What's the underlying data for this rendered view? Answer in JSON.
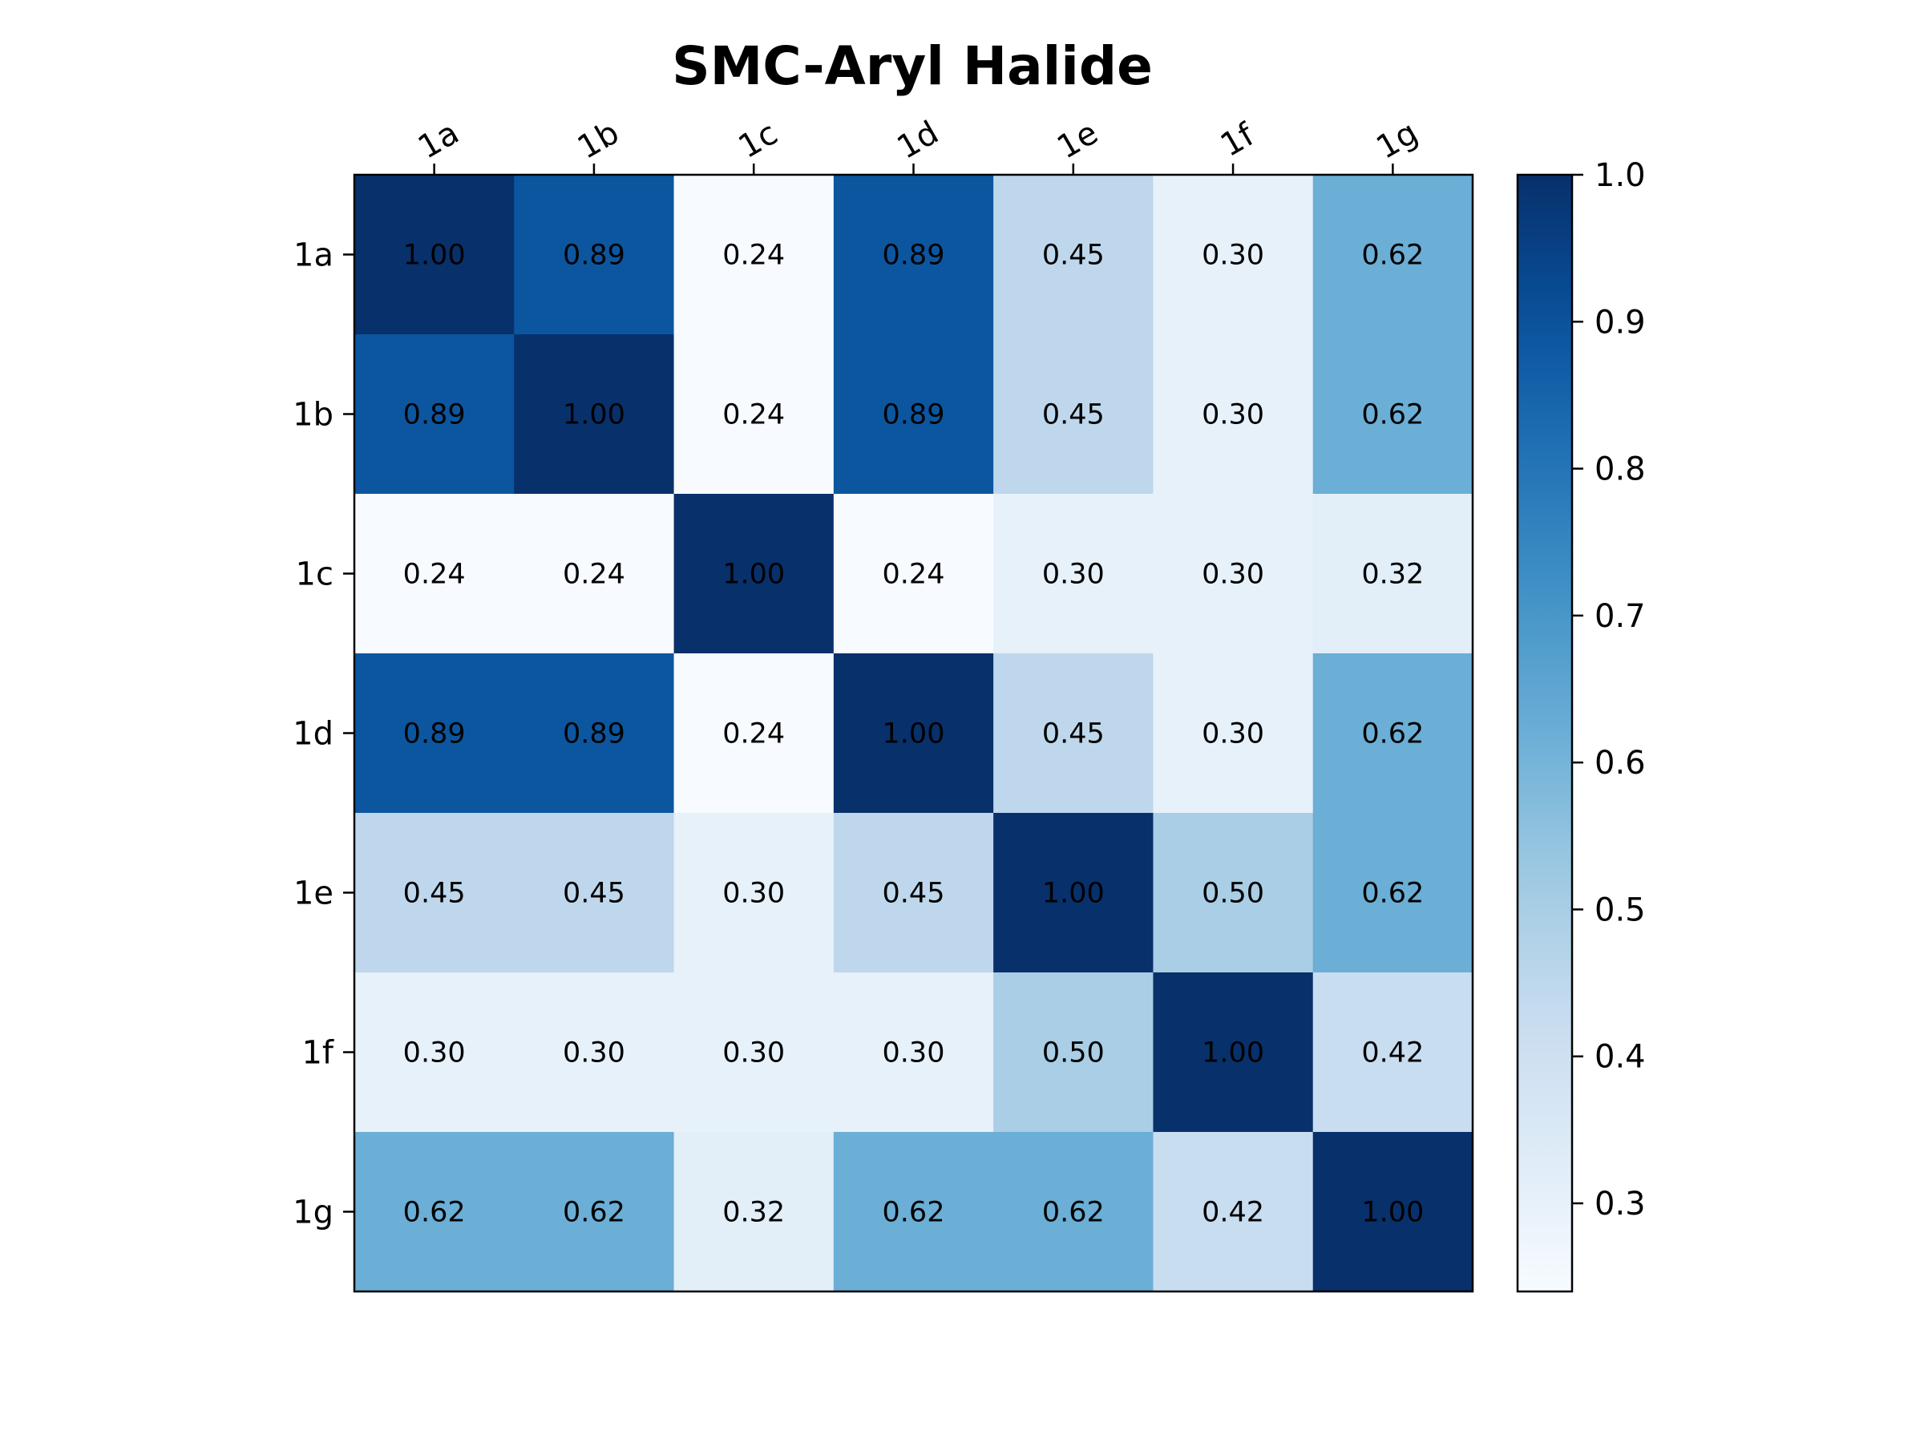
{
  "chart_data": {
    "type": "heatmap",
    "title": "SMC-Aryl Halide",
    "x_labels": [
      "1a",
      "1b",
      "1c",
      "1d",
      "1e",
      "1f",
      "1g"
    ],
    "y_labels": [
      "1a",
      "1b",
      "1c",
      "1d",
      "1e",
      "1f",
      "1g"
    ],
    "values": [
      [
        1.0,
        0.89,
        0.24,
        0.89,
        0.45,
        0.3,
        0.62
      ],
      [
        0.89,
        1.0,
        0.24,
        0.89,
        0.45,
        0.3,
        0.62
      ],
      [
        0.24,
        0.24,
        1.0,
        0.24,
        0.3,
        0.3,
        0.32
      ],
      [
        0.89,
        0.89,
        0.24,
        1.0,
        0.45,
        0.3,
        0.62
      ],
      [
        0.45,
        0.45,
        0.3,
        0.45,
        1.0,
        0.5,
        0.62
      ],
      [
        0.3,
        0.3,
        0.3,
        0.3,
        0.5,
        1.0,
        0.42
      ],
      [
        0.62,
        0.62,
        0.32,
        0.62,
        0.62,
        0.42,
        1.0
      ]
    ],
    "value_format": "0.00",
    "colormap": "Blues",
    "color_range": [
      0.24,
      1.0
    ],
    "colorbar": {
      "ticks": [
        0.3,
        0.4,
        0.5,
        0.6,
        0.7,
        0.8,
        0.9,
        1.0
      ],
      "tick_labels": [
        "0.3",
        "0.4",
        "0.5",
        "0.6",
        "0.7",
        "0.8",
        "0.9",
        "1.0"
      ]
    },
    "x_tick_position": "top",
    "x_tick_rotation": "30 degrees",
    "grid": false
  }
}
